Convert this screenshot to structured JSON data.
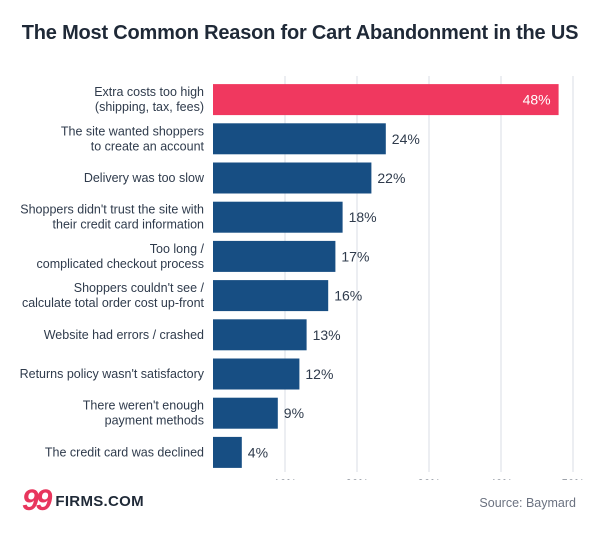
{
  "chart_data": {
    "type": "bar",
    "orientation": "horizontal",
    "title": "The Most Common Reason for Cart Abandonment in the US",
    "categories": [
      [
        "Extra costs too high",
        "(shipping, tax, fees)"
      ],
      [
        "The site wanted shoppers",
        "to create an account"
      ],
      [
        "Delivery was too slow"
      ],
      [
        "Shoppers didn't trust the site with",
        "their credit card information"
      ],
      [
        "Too long /",
        "complicated checkout process"
      ],
      [
        "Shoppers couldn't see /",
        "calculate total order cost up-front"
      ],
      [
        "Website had errors / crashed"
      ],
      [
        "Returns policy wasn't satisfactory"
      ],
      [
        "There weren't enough",
        "payment methods"
      ],
      [
        "The credit card was declined"
      ]
    ],
    "values": [
      48,
      24,
      22,
      18,
      17,
      16,
      13,
      12,
      9,
      4
    ],
    "value_labels": [
      "48%",
      "24%",
      "22%",
      "18%",
      "17%",
      "16%",
      "13%",
      "12%",
      "9%",
      "4%"
    ],
    "xlim": [
      0,
      50
    ],
    "xticks": [
      10,
      20,
      30,
      40,
      50
    ],
    "xtick_labels": [
      "10%",
      "20%",
      "30%",
      "40%",
      "50%"
    ],
    "grid": "vertical",
    "colors": {
      "highlight": "#f0385f",
      "bar": "#174e83",
      "grid": "#d9dee5"
    },
    "highlight_index": 0
  },
  "footer": {
    "logo_number": "99",
    "logo_text": "FIRMS.COM",
    "source": "Source: Baymard"
  }
}
